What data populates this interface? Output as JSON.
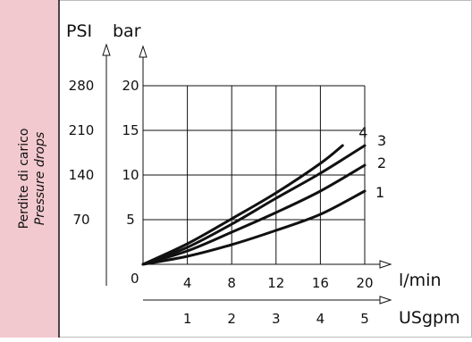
{
  "side_label": {
    "italian": "Perdite di carico",
    "english": "Pressure drops"
  },
  "colors": {
    "side_panel_fill": "#f2c9cf",
    "line": "#111111",
    "grid": "#111111"
  },
  "chart_data": {
    "type": "line",
    "title": "",
    "primary_x_axis": {
      "label": "l/min",
      "ticks": [
        4,
        8,
        12,
        16,
        20
      ],
      "range": [
        0,
        20
      ],
      "origin_label": "0"
    },
    "secondary_x_axis": {
      "label": "USgpm",
      "ticks": [
        1,
        2,
        3,
        4,
        5
      ]
    },
    "y_axis_bar": {
      "label": "bar",
      "ticks": [
        5,
        10,
        15,
        20
      ],
      "range": [
        0,
        20
      ]
    },
    "y_axis_psi": {
      "label": "PSI",
      "ticks": [
        70,
        140,
        210,
        280
      ]
    },
    "grid": true,
    "series": [
      {
        "name": "1",
        "x": [
          0,
          4,
          8,
          12,
          16,
          20
        ],
        "y": [
          0,
          0.9,
          2.2,
          3.8,
          5.6,
          8.2
        ]
      },
      {
        "name": "2",
        "x": [
          0,
          4,
          8,
          12,
          16,
          20
        ],
        "y": [
          0,
          1.5,
          3.6,
          5.8,
          8.2,
          11.1
        ]
      },
      {
        "name": "3",
        "x": [
          0,
          4,
          8,
          12,
          16,
          20
        ],
        "y": [
          0,
          1.9,
          4.5,
          7.4,
          10.2,
          13.3
        ]
      },
      {
        "name": "4",
        "x": [
          0,
          4,
          8,
          12,
          16,
          18
        ],
        "y": [
          0,
          2.3,
          5.1,
          8.0,
          11.3,
          13.3
        ]
      }
    ]
  }
}
